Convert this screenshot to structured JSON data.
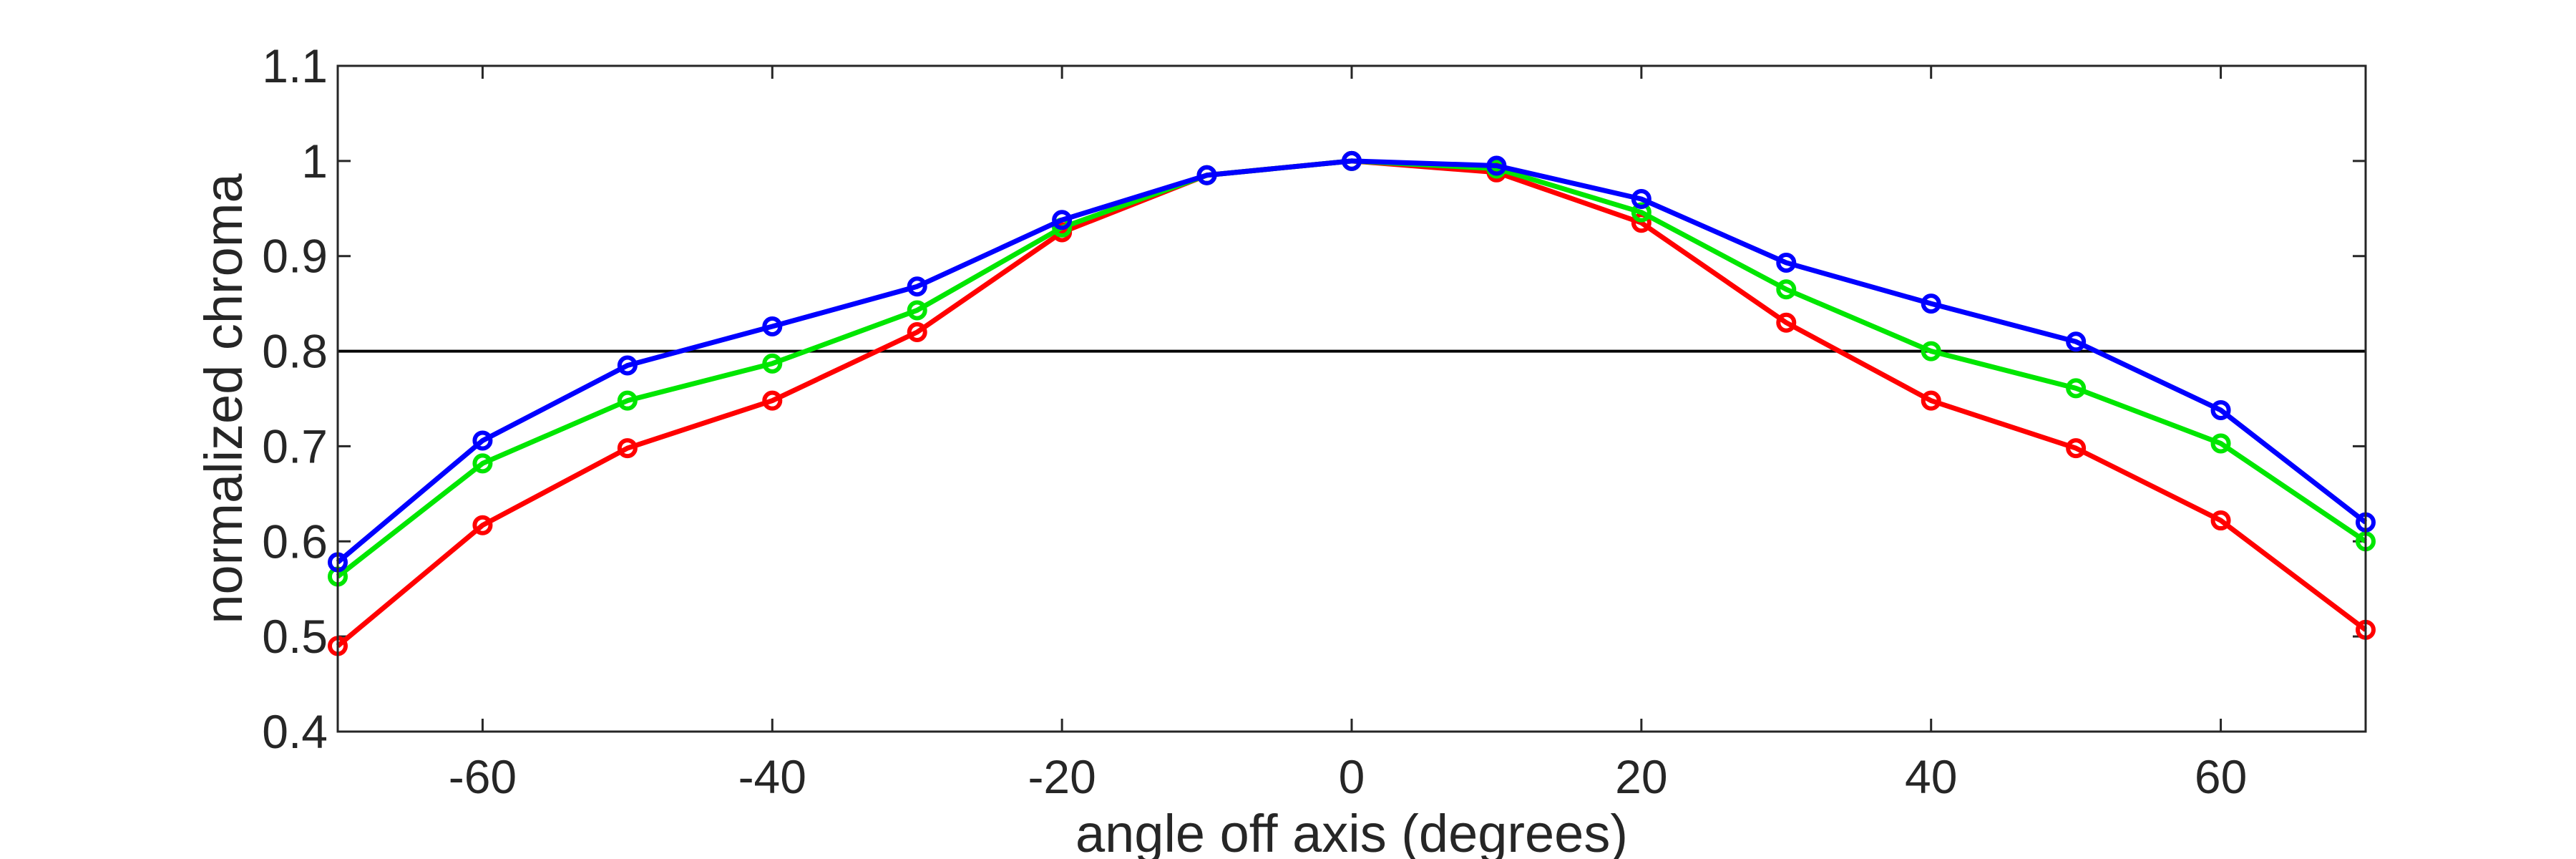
{
  "chart_data": {
    "type": "line",
    "xlabel": "angle off axis (degrees)",
    "ylabel": "normalized chroma",
    "xlim": [
      -70,
      70
    ],
    "ylim": [
      0.4,
      1.1
    ],
    "xticks": [
      -60,
      -40,
      -20,
      0,
      20,
      40,
      60
    ],
    "yticks": [
      0.4,
      0.5,
      0.6,
      0.7,
      0.8,
      0.9,
      1,
      1.1
    ],
    "xtick_labels": [
      "-60",
      "-40",
      "-20",
      "0",
      "20",
      "40",
      "60"
    ],
    "ytick_labels": [
      "0.4",
      "0.5",
      "0.6",
      "0.7",
      "0.8",
      "0.9",
      "1",
      "1.1"
    ],
    "x": [
      -70,
      -60,
      -50,
      -40,
      -30,
      -20,
      -10,
      0,
      10,
      20,
      30,
      40,
      50,
      60,
      70
    ],
    "reference_line": {
      "y": 0.8,
      "color": "#000000"
    },
    "grid": false,
    "markers": "circle",
    "series": [
      {
        "color": "#ff0000",
        "values": [
          0.49,
          0.617,
          0.698,
          0.748,
          0.82,
          0.925,
          0.985,
          1.0,
          0.988,
          0.935,
          0.83,
          0.748,
          0.698,
          0.622,
          0.507
        ]
      },
      {
        "color": "#00e600",
        "values": [
          0.563,
          0.682,
          0.748,
          0.787,
          0.843,
          0.93,
          0.985,
          1.0,
          0.992,
          0.946,
          0.865,
          0.8,
          0.761,
          0.703,
          0.6
        ]
      },
      {
        "color": "#0000ff",
        "values": [
          0.578,
          0.706,
          0.785,
          0.826,
          0.868,
          0.938,
          0.985,
          1.0,
          0.995,
          0.96,
          0.893,
          0.85,
          0.81,
          0.738,
          0.62
        ]
      }
    ]
  }
}
